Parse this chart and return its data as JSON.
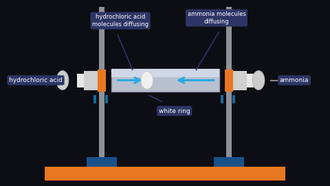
{
  "bg_color": "#0d0d14",
  "label_box_color": "#2d3566",
  "label_text_color": "#ffffff",
  "tube_color": "#b8c0d0",
  "tube_top_color": "#d0d8e8",
  "tube_stroke": "#9090a8",
  "orange_color": "#e87820",
  "teal_color": "#1a6a9a",
  "stand_color": "#909098",
  "base_color": "#e87820",
  "foot_color": "#1a508a",
  "arrow_color": "#29aae1",
  "white_ring_color": "#f0f0f0",
  "annotation_line_color": "#2d3566",
  "hcl_label": "hydrochloric acid",
  "nh3_label": "ammonia",
  "hcl_diff_label": "hydrochloric acid\nmolecules diffusing",
  "nh3_diff_label": "ammonia molecules\ndiffusing",
  "white_ring_label": "white ring",
  "figw": 4.8,
  "figh": 2.7,
  "dpi": 100
}
